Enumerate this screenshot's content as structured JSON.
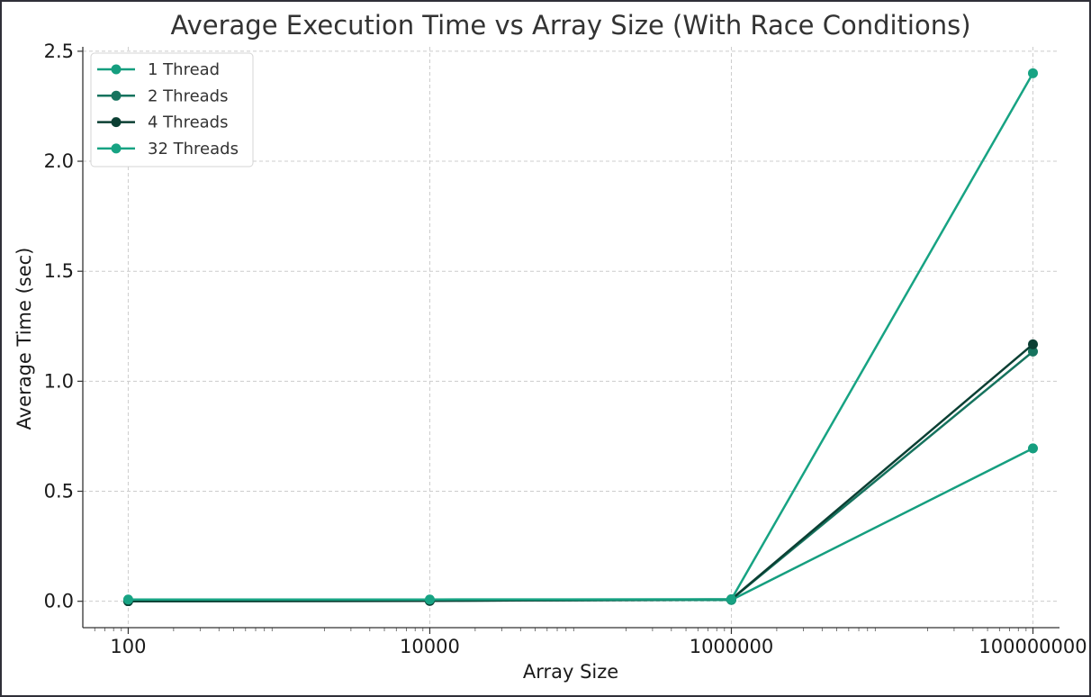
{
  "chart_data": {
    "type": "line",
    "title": "Average Execution Time vs Array Size (With Race Conditions)",
    "xlabel": "Array Size",
    "ylabel": "Average Time (sec)",
    "x_scale": "log",
    "x": [
      100,
      10000,
      1000000,
      100000000
    ],
    "x_tick_labels": [
      "100",
      "10000",
      "1000000",
      "100000000"
    ],
    "xlim": [
      50,
      150000000
    ],
    "ylim": [
      -0.12,
      2.52
    ],
    "y_ticks": [
      0.0,
      0.5,
      1.0,
      1.5,
      2.0,
      2.5
    ],
    "y_tick_labels": [
      "0.0",
      "0.5",
      "1.0",
      "1.5",
      "2.0",
      "2.5"
    ],
    "grid": true,
    "legend_position": "top-left",
    "series": [
      {
        "name": "1 Thread",
        "color": "#159e7f",
        "values": [
          0.0005,
          0.003,
          0.006,
          0.695
        ]
      },
      {
        "name": "2 Threads",
        "color": "#16735e",
        "values": [
          0.0005,
          0.002,
          0.008,
          1.135
        ]
      },
      {
        "name": "4 Threads",
        "color": "#0b3f33",
        "values": [
          0.0005,
          0.002,
          0.009,
          1.168
        ]
      },
      {
        "name": "32 Threads",
        "color": "#17a383",
        "values": [
          0.008,
          0.008,
          0.009,
          2.4
        ]
      }
    ]
  }
}
